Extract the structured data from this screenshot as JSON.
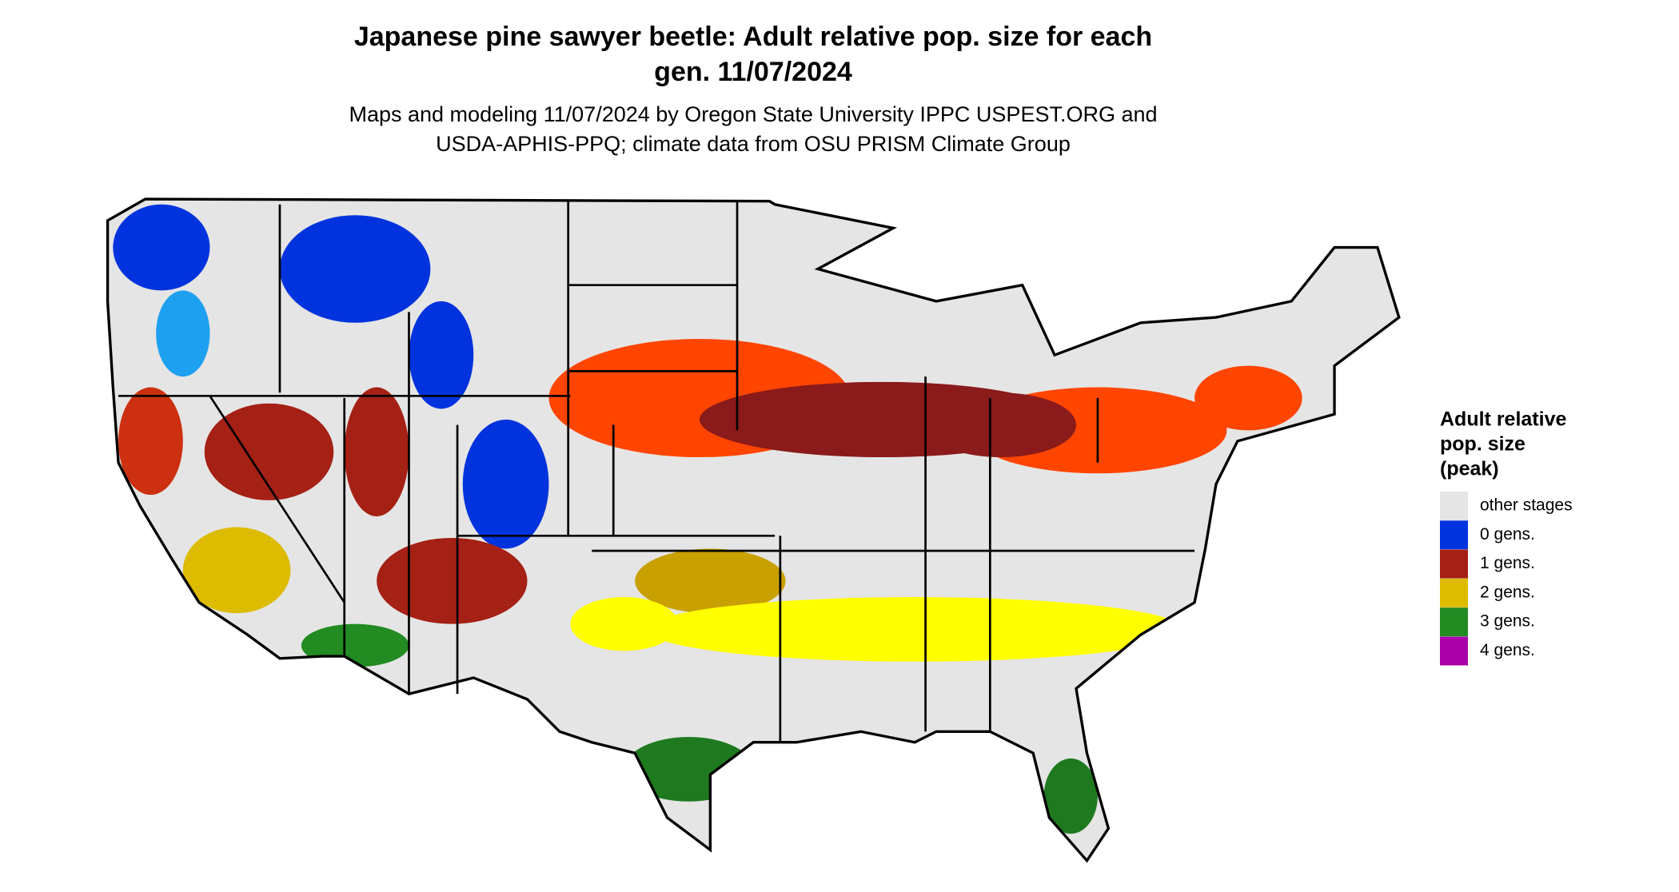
{
  "title": {
    "lines": [
      "Japanese pine sawyer beetle: Adult relative pop. size for each",
      "gen. 11/07/2024"
    ]
  },
  "subtitle": {
    "lines": [
      "Maps and modeling 11/07/2024 by Oregon State University IPPC USPEST.ORG and",
      "USDA-APHIS-PPQ; climate data from OSU PRISM Climate Group"
    ]
  },
  "legend": {
    "title_lines": [
      "Adult relative",
      "pop. size",
      "(peak)"
    ],
    "items": [
      {
        "label": "other stages",
        "color": "#e5e5e5"
      },
      {
        "label": "0 gens.",
        "color": "#0033dd"
      },
      {
        "label": "1 gens.",
        "color": "#a52015"
      },
      {
        "label": "2 gens.",
        "color": "#ddbb00"
      },
      {
        "label": "3 gens.",
        "color": "#228b22"
      },
      {
        "label": "4 gens.",
        "color": "#aa00aa"
      }
    ]
  }
}
